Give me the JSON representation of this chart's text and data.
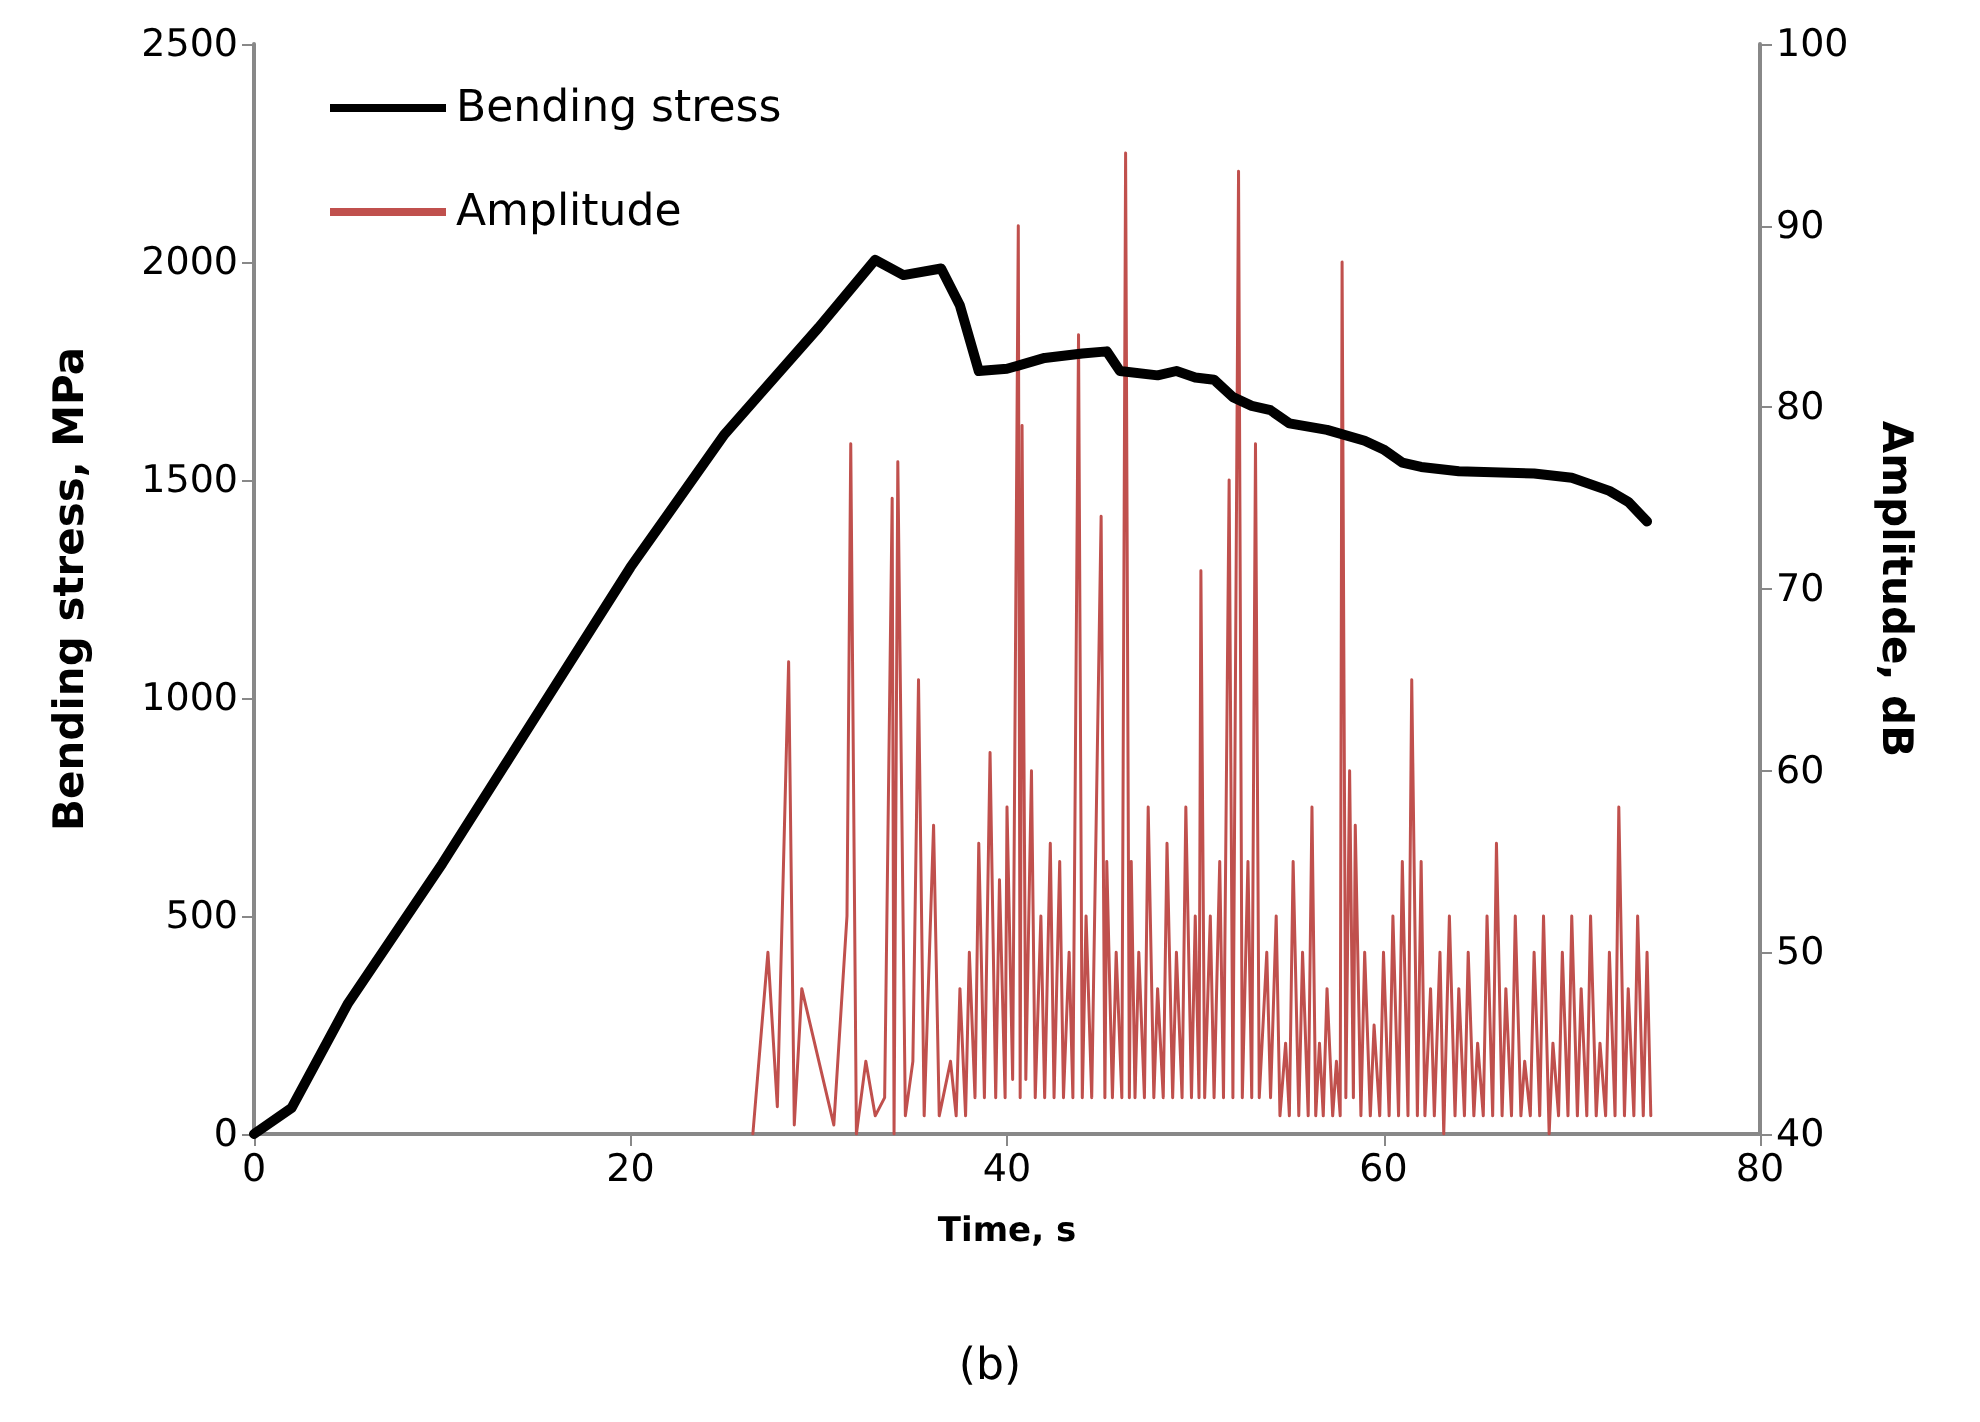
{
  "chart_data": {
    "type": "line",
    "xlabel": "Time, s",
    "ylabel": "Bending stress, MPa",
    "y2label": "Amplitude, dB",
    "annotations": [
      "(b)"
    ],
    "xlim": [
      0,
      80
    ],
    "xticks": [
      0,
      20,
      40,
      60,
      80
    ],
    "ylim": [
      0,
      2500
    ],
    "yticks": [
      0,
      500,
      1000,
      1500,
      2000,
      2500
    ],
    "y2lim": [
      40,
      100
    ],
    "y2ticks": [
      40,
      50,
      60,
      70,
      80,
      90,
      100
    ],
    "grid": false,
    "legend": "top left",
    "marker": "none",
    "line_style": "solid",
    "series": [
      {
        "name": "Bending stress",
        "color": "#000000",
        "x": [
          0,
          2,
          5,
          10,
          15,
          20,
          25,
          30,
          33,
          34.5,
          36.5,
          37.5,
          38.5,
          40,
          42,
          44,
          45.3,
          46,
          48,
          49,
          50,
          51,
          52,
          53,
          54,
          55,
          57,
          59,
          60,
          61,
          62,
          64,
          68,
          70,
          72,
          73,
          74
        ],
        "values": [
          0,
          60,
          300,
          620,
          960,
          1300,
          1605,
          1850,
          2005,
          1970,
          1985,
          1900,
          1750,
          1755,
          1780,
          1790,
          1795,
          1750,
          1740,
          1750,
          1735,
          1730,
          1690,
          1670,
          1660,
          1630,
          1615,
          1590,
          1570,
          1540,
          1530,
          1520,
          1515,
          1505,
          1475,
          1450,
          1405
        ]
      },
      {
        "name": "Amplitude",
        "color": "#c0504d",
        "axis": "y2",
        "x": [
          26.5,
          27.3,
          27.8,
          28.4,
          28.7,
          29.1,
          30.8,
          31.5,
          31.7,
          32.0,
          32.5,
          33.0,
          33.5,
          33.9,
          34.0,
          34.2,
          34.6,
          35.0,
          35.3,
          35.6,
          36.1,
          36.4,
          37.0,
          37.3,
          37.5,
          37.8,
          38.0,
          38.3,
          38.5,
          38.8,
          39.1,
          39.4,
          39.6,
          39.9,
          40.0,
          40.3,
          40.6,
          40.7,
          40.8,
          41.0,
          41.3,
          41.5,
          41.8,
          42.0,
          42.3,
          42.5,
          42.8,
          43.0,
          43.3,
          43.5,
          43.8,
          44.0,
          44.2,
          44.5,
          45.0,
          45.2,
          45.3,
          45.6,
          45.8,
          46.1,
          46.3,
          46.5,
          46.6,
          46.8,
          47.0,
          47.3,
          47.5,
          47.8,
          48.0,
          48.3,
          48.5,
          48.8,
          49.0,
          49.3,
          49.5,
          49.8,
          50.0,
          50.2,
          50.3,
          50.5,
          50.8,
          51.0,
          51.3,
          51.5,
          51.8,
          52.0,
          52.3,
          52.5,
          52.8,
          53.0,
          53.2,
          53.4,
          53.8,
          54.0,
          54.3,
          54.5,
          54.8,
          55.0,
          55.2,
          55.5,
          55.7,
          56.0,
          56.2,
          56.4,
          56.6,
          56.8,
          57.0,
          57.3,
          57.5,
          57.7,
          57.8,
          58.0,
          58.2,
          58.4,
          58.5,
          58.8,
          59.0,
          59.3,
          59.5,
          59.8,
          60.0,
          60.3,
          60.5,
          60.8,
          61.0,
          61.3,
          61.5,
          61.8,
          62.0,
          62.2,
          62.5,
          62.7,
          63.0,
          63.2,
          63.5,
          63.8,
          64.0,
          64.3,
          64.5,
          64.8,
          65.0,
          65.3,
          65.5,
          65.8,
          66.0,
          66.3,
          66.5,
          66.8,
          67.0,
          67.3,
          67.5,
          67.8,
          68.0,
          68.3,
          68.5,
          68.8,
          69.0,
          69.3,
          69.5,
          69.8,
          70.0,
          70.3,
          70.5,
          70.8,
          71.0,
          71.3,
          71.5,
          71.8,
          72.0,
          72.3,
          72.5,
          72.8,
          73.0,
          73.3,
          73.5,
          73.8,
          74.0,
          74.2
        ],
        "values": [
          40,
          50,
          41.5,
          66,
          40.5,
          48,
          40.5,
          52,
          78,
          40,
          44,
          41,
          42,
          75,
          40,
          77,
          41,
          44,
          65,
          41,
          57,
          41,
          44,
          41,
          48,
          41,
          50,
          42,
          56,
          42,
          61,
          42,
          54,
          42,
          58,
          43,
          90,
          42,
          79,
          43,
          60,
          42,
          52,
          42,
          56,
          42,
          55,
          42,
          50,
          42,
          84,
          42,
          52,
          42,
          74,
          42,
          55,
          42,
          50,
          42,
          94,
          42,
          55,
          42,
          50,
          42,
          58,
          42,
          48,
          42,
          56,
          42,
          50,
          42,
          58,
          42,
          52,
          42,
          71,
          42,
          52,
          42,
          55,
          42,
          76,
          42,
          93,
          42,
          55,
          42,
          78,
          42,
          50,
          42,
          52,
          41,
          45,
          41,
          55,
          41,
          50,
          41,
          58,
          41,
          45,
          41,
          48,
          41,
          44,
          41,
          88,
          42,
          60,
          42,
          57,
          41,
          50,
          41,
          46,
          41,
          50,
          41,
          52,
          41,
          55,
          41,
          65,
          41,
          55,
          41,
          48,
          41,
          50,
          40,
          52,
          41,
          48,
          41,
          50,
          41,
          45,
          41,
          52,
          41,
          56,
          41,
          48,
          41,
          52,
          41,
          44,
          41,
          50,
          41,
          52,
          40,
          45,
          41,
          50,
          41,
          52,
          41,
          48,
          41,
          52,
          41,
          45,
          41,
          50,
          41,
          58,
          41,
          48,
          41,
          52,
          41,
          50,
          41
        ]
      }
    ]
  }
}
